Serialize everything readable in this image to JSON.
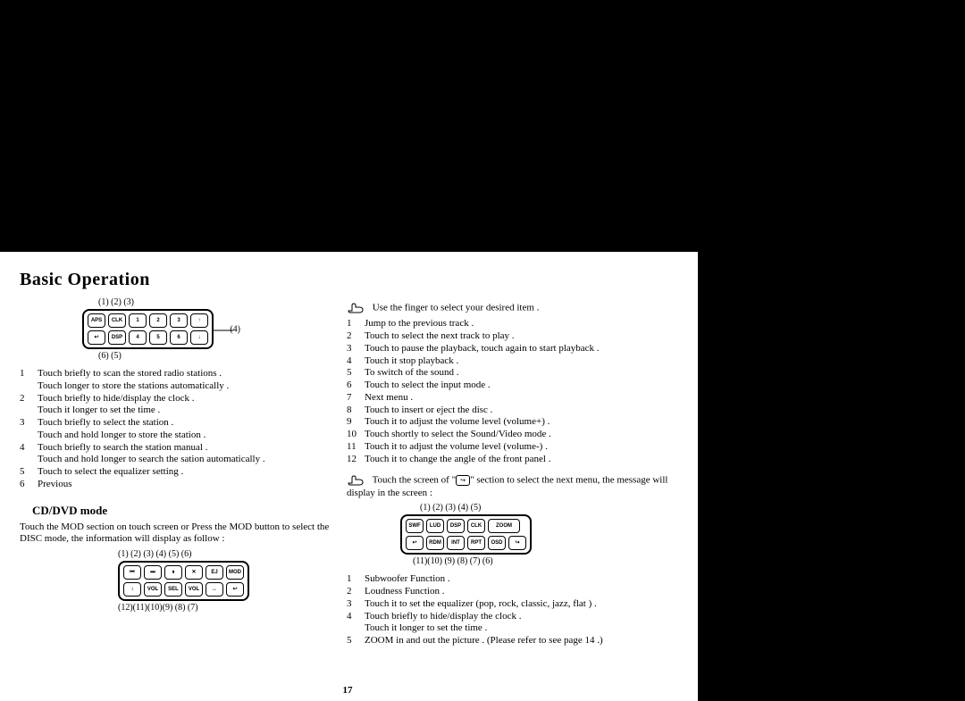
{
  "title": "Basic Operation",
  "page_number": "17",
  "diagram1": {
    "top_labels": "(1) (2)        (3)",
    "bottom_labels": "(6)  (5)",
    "side_label": "(4)",
    "rows": [
      [
        "APS",
        "CLK",
        "1",
        "2",
        "3",
        "↑"
      ],
      [
        "↩",
        "DSP",
        "4",
        "5",
        "6",
        "↓"
      ]
    ]
  },
  "list1": [
    {
      "n": "1",
      "t": "Touch briefly to scan the stored radio stations .\nTouch longer to store the stations automatically ."
    },
    {
      "n": "2",
      "t": "Touch briefly to hide/display the clock .\nTouch it longer to set the time ."
    },
    {
      "n": "3",
      "t": "Touch briefly to select the station .\nTouch and hold longer to store the station ."
    },
    {
      "n": "4",
      "t": "Touch briefly to search the station manual .\nTouch and hold longer to search the sation automatically ."
    },
    {
      "n": "5",
      "t": "Touch to select the equalizer setting ."
    },
    {
      "n": "6",
      "t": "Previous"
    }
  ],
  "cd_heading": "CD/DVD mode",
  "cd_intro": "Touch the MOD section on touch screen or Press the MOD button to select the DISC mode, the information will display as follow :",
  "diagram2": {
    "top_labels": "(1) (2) (3) (4) (5) (6)",
    "bottom_labels": "(12)(11)(10)(9) (8)  (7)",
    "rows": [
      [
        "⏮",
        "⏭",
        "⏸",
        "✕",
        "EJ",
        "MOD"
      ],
      [
        "↕",
        "VOL",
        "SEL",
        "VOL",
        "↔",
        "↩"
      ]
    ]
  },
  "hand_intro": "Use the finger to select your desired item .",
  "list2": [
    {
      "n": "1",
      "t": "Jump to the previous track ."
    },
    {
      "n": "2",
      "t": "Touch to select the next track to play ."
    },
    {
      "n": "3",
      "t": "Touch to pause the playback, touch again to start playback ."
    },
    {
      "n": "4",
      "t": "Touch it stop playback ."
    },
    {
      "n": "5",
      "t": "To switch of the sound ."
    },
    {
      "n": "6",
      "t": "Touch to select the input mode ."
    },
    {
      "n": "7",
      "t": "Next menu ."
    },
    {
      "n": "8",
      "t": "Touch to insert or eject the disc ."
    },
    {
      "n": "9",
      "t": "Touch it to adjust the volume level (volume+) ."
    },
    {
      "n": "10",
      "t": "Touch shortly to select the Sound/Video mode ."
    },
    {
      "n": "11",
      "t": "Touch it to adjust the volume level (volume-) ."
    },
    {
      "n": "12",
      "t": "Touch it to change the angle of the front panel ."
    }
  ],
  "note_text_a": "Touch the screen of \"",
  "note_text_b": "\" section to select the next menu, the message will display in the screen :",
  "diagram3": {
    "top_labels": "(1) (2) (3) (4)    (5)",
    "bottom_labels": "(11)(10) (9) (8) (7)  (6)",
    "rows": [
      [
        "SWF",
        "LUD",
        "DSP",
        "CLK",
        "ZOOM"
      ],
      [
        "↩",
        "RDM",
        "INT",
        "RPT",
        "OSD",
        "↪"
      ]
    ]
  },
  "list3": [
    {
      "n": "1",
      "t": "Subwoofer Function ."
    },
    {
      "n": "2",
      "t": "Loudness Function ."
    },
    {
      "n": "3",
      "t": "Touch it to set the equalizer (pop, rock, classic, jazz, flat ) ."
    },
    {
      "n": "4",
      "t": "Touch briefly to hide/display the clock .\nTouch it longer to set the time ."
    },
    {
      "n": "5",
      "t": "ZOOM in and out the picture . (Please refer to see page 14 .)"
    }
  ]
}
